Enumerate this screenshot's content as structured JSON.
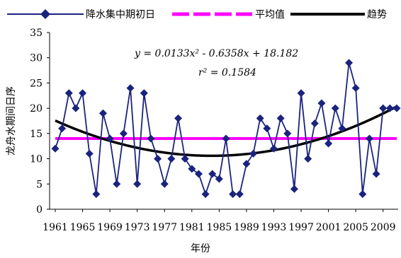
{
  "chart_data": {
    "type": "line",
    "xlabel": "年份",
    "ylabel": "龙舟水期间日序",
    "xlim": [
      1961,
      2011
    ],
    "ylim": [
      0,
      35
    ],
    "y_ticks": [
      0,
      5,
      10,
      15,
      20,
      25,
      30,
      35
    ],
    "x_ticks": [
      "1961",
      "1965",
      "1969",
      "1973",
      "1977",
      "1981",
      "1985",
      "1989",
      "1993",
      "1997",
      "2001",
      "2005",
      "2009"
    ],
    "grid": false,
    "legend_position": "top",
    "x": [
      1961,
      1962,
      1963,
      1964,
      1965,
      1966,
      1967,
      1968,
      1969,
      1970,
      1971,
      1972,
      1973,
      1974,
      1975,
      1976,
      1977,
      1978,
      1979,
      1980,
      1981,
      1982,
      1983,
      1984,
      1985,
      1986,
      1987,
      1988,
      1989,
      1990,
      1991,
      1992,
      1993,
      1994,
      1995,
      1996,
      1997,
      1998,
      1999,
      2000,
      2001,
      2002,
      2003,
      2004,
      2005,
      2006,
      2007,
      2008,
      2009,
      2010,
      2011
    ],
    "series": [
      {
        "name": "降水集中期初日",
        "color": "#1a237e",
        "marker": "diamond",
        "values": [
          12,
          16,
          23,
          20,
          23,
          11,
          3,
          19,
          14,
          5,
          15,
          24,
          5,
          23,
          14,
          10,
          5,
          10,
          18,
          10,
          8,
          7,
          3,
          7,
          6,
          14,
          3,
          3,
          9,
          11,
          18,
          16,
          12,
          18,
          15,
          4,
          23,
          10,
          17,
          21,
          13,
          20,
          16,
          29,
          24,
          3,
          14,
          7,
          20,
          20,
          20
        ]
      },
      {
        "name": "平均值",
        "color": "#ff00ff",
        "style": "dashed",
        "value": 14
      },
      {
        "name": "趋势",
        "color": "#000000",
        "type": "polynomial-trend",
        "coefficients": [
          0.0133,
          -0.6358,
          18.182
        ]
      }
    ],
    "annotations": {
      "equation": "y = 0.0133x² - 0.6358x + 18.182",
      "r_squared": "r² = 0.1584"
    }
  }
}
